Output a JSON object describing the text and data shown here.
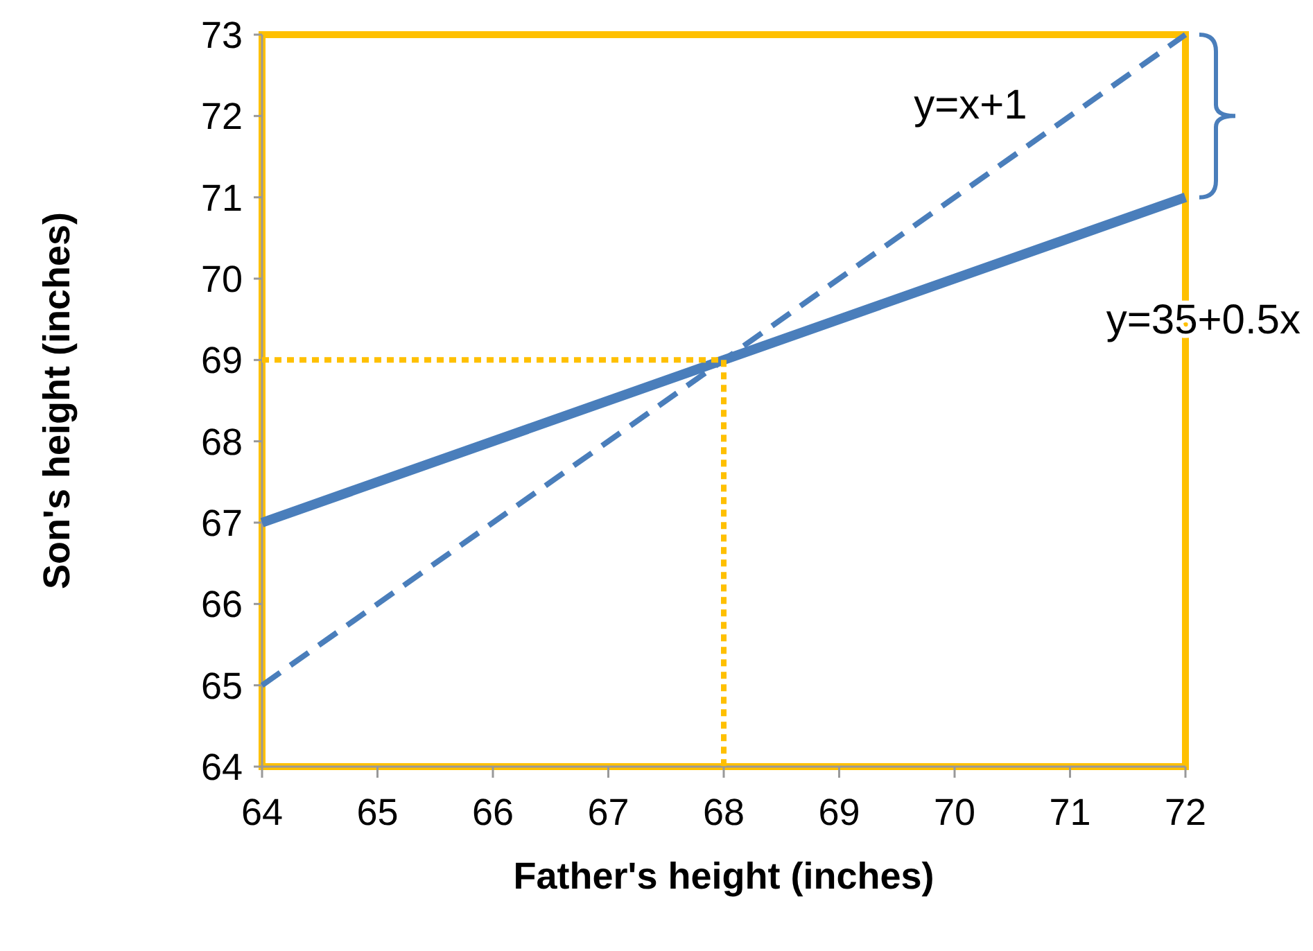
{
  "chart_data": {
    "type": "line",
    "xlabel": "Father's height (inches)",
    "ylabel": "Son's height (inches)",
    "xlim": [
      64,
      72
    ],
    "ylim": [
      64,
      73
    ],
    "xticks": [
      64,
      65,
      66,
      67,
      68,
      69,
      70,
      71,
      72
    ],
    "yticks": [
      64,
      65,
      66,
      67,
      68,
      69,
      70,
      71,
      72,
      73
    ],
    "grid": false,
    "series": [
      {
        "x": [
          64,
          72
        ],
        "values": [
          67,
          71
        ],
        "color": "#4a7ebb",
        "line_style": "solid"
      },
      {
        "x": [
          64,
          72
        ],
        "values": [
          65,
          73
        ],
        "color": "#4a7ebb",
        "line_style": "dashed"
      },
      {
        "x": [
          64,
          68,
          68
        ],
        "values": [
          69,
          69,
          64
        ],
        "color": "#ffc000",
        "line_style": "dotted"
      }
    ],
    "annotations": [
      "y=x+1",
      "y=35+0.5x"
    ]
  }
}
